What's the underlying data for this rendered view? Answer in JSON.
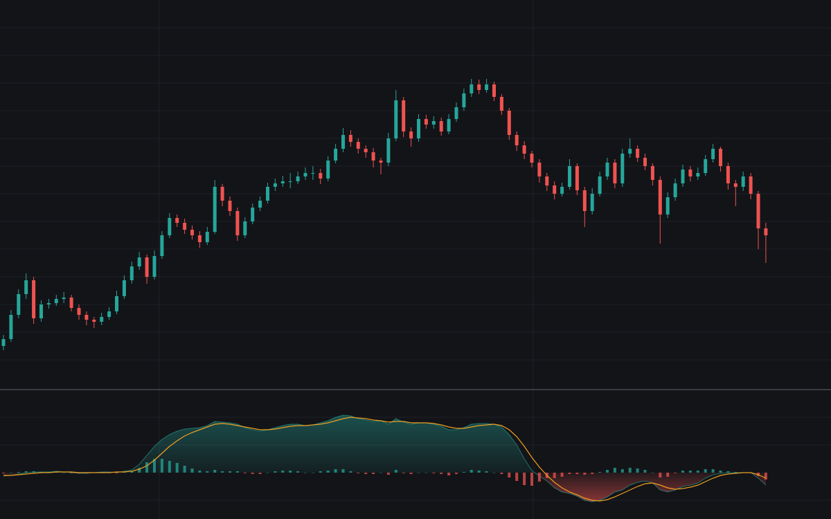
{
  "chart_data": [
    {
      "type": "candlestick",
      "up_color": "#26a69a",
      "down_color": "#ef5350",
      "ylim": [
        0,
        560
      ],
      "candles": [
        [
          60,
          76,
          54,
          70
        ],
        [
          70,
          112,
          66,
          105
        ],
        [
          105,
          142,
          100,
          135
        ],
        [
          135,
          165,
          128,
          155
        ],
        [
          155,
          160,
          92,
          100
        ],
        [
          100,
          126,
          95,
          120
        ],
        [
          120,
          128,
          114,
          122
        ],
        [
          122,
          134,
          118,
          128
        ],
        [
          128,
          138,
          122,
          130
        ],
        [
          130,
          134,
          110,
          115
        ],
        [
          115,
          120,
          98,
          105
        ],
        [
          105,
          110,
          90,
          98
        ],
        [
          98,
          102,
          86,
          95
        ],
        [
          95,
          108,
          90,
          102
        ],
        [
          102,
          116,
          98,
          110
        ],
        [
          110,
          140,
          106,
          132
        ],
        [
          132,
          162,
          128,
          155
        ],
        [
          155,
          182,
          150,
          175
        ],
        [
          175,
          196,
          170,
          188
        ],
        [
          188,
          192,
          150,
          160
        ],
        [
          160,
          198,
          156,
          190
        ],
        [
          190,
          226,
          186,
          220
        ],
        [
          220,
          252,
          216,
          245
        ],
        [
          245,
          250,
          232,
          238
        ],
        [
          238,
          244,
          222,
          228
        ],
        [
          228,
          234,
          214,
          220
        ],
        [
          220,
          226,
          202,
          210
        ],
        [
          210,
          232,
          206,
          225
        ],
        [
          225,
          300,
          222,
          290
        ],
        [
          290,
          294,
          262,
          270
        ],
        [
          270,
          276,
          248,
          255
        ],
        [
          255,
          260,
          212,
          220
        ],
        [
          220,
          246,
          216,
          240
        ],
        [
          240,
          266,
          236,
          260
        ],
        [
          260,
          276,
          255,
          270
        ],
        [
          270,
          296,
          266,
          290
        ],
        [
          290,
          302,
          284,
          295
        ],
        [
          295,
          306,
          290,
          298
        ],
        [
          298,
          310,
          288,
          298
        ],
        [
          298,
          312,
          294,
          305
        ],
        [
          305,
          318,
          300,
          310
        ],
        [
          310,
          320,
          300,
          310
        ],
        [
          310,
          316,
          294,
          302
        ],
        [
          302,
          334,
          298,
          328
        ],
        [
          328,
          352,
          324,
          345
        ],
        [
          345,
          375,
          340,
          365
        ],
        [
          365,
          372,
          348,
          355
        ],
        [
          355,
          360,
          338,
          345
        ],
        [
          345,
          350,
          332,
          340
        ],
        [
          340,
          346,
          318,
          328
        ],
        [
          328,
          332,
          308,
          325
        ],
        [
          325,
          368,
          320,
          360
        ],
        [
          360,
          430,
          356,
          415
        ],
        [
          415,
          420,
          362,
          370
        ],
        [
          370,
          376,
          348,
          360
        ],
        [
          360,
          395,
          355,
          388
        ],
        [
          388,
          394,
          374,
          380
        ],
        [
          380,
          392,
          374,
          385
        ],
        [
          385,
          390,
          364,
          370
        ],
        [
          370,
          395,
          366,
          388
        ],
        [
          388,
          412,
          384,
          405
        ],
        [
          405,
          432,
          400,
          425
        ],
        [
          425,
          446,
          420,
          438
        ],
        [
          438,
          445,
          424,
          430
        ],
        [
          430,
          446,
          426,
          438
        ],
        [
          438,
          442,
          414,
          420
        ],
        [
          420,
          424,
          394,
          400
        ],
        [
          400,
          404,
          358,
          365
        ],
        [
          365,
          370,
          342,
          350
        ],
        [
          350,
          356,
          330,
          338
        ],
        [
          338,
          342,
          318,
          325
        ],
        [
          325,
          330,
          296,
          305
        ],
        [
          305,
          310,
          284,
          292
        ],
        [
          292,
          298,
          272,
          280
        ],
        [
          280,
          296,
          276,
          290
        ],
        [
          290,
          330,
          286,
          320
        ],
        [
          320,
          324,
          278,
          285
        ],
        [
          285,
          290,
          232,
          255
        ],
        [
          255,
          288,
          250,
          280
        ],
        [
          280,
          312,
          276,
          305
        ],
        [
          305,
          332,
          300,
          325
        ],
        [
          325,
          330,
          288,
          295
        ],
        [
          295,
          345,
          290,
          338
        ],
        [
          338,
          360,
          332,
          345
        ],
        [
          345,
          350,
          326,
          332
        ],
        [
          332,
          338,
          314,
          320
        ],
        [
          320,
          324,
          292,
          300
        ],
        [
          300,
          305,
          208,
          250
        ],
        [
          250,
          282,
          245,
          275
        ],
        [
          275,
          302,
          270,
          295
        ],
        [
          295,
          322,
          290,
          315
        ],
        [
          315,
          320,
          298,
          305
        ],
        [
          305,
          318,
          300,
          310
        ],
        [
          310,
          336,
          306,
          330
        ],
        [
          330,
          352,
          325,
          345
        ],
        [
          345,
          348,
          312,
          320
        ],
        [
          320,
          325,
          286,
          295
        ],
        [
          295,
          300,
          262,
          290
        ],
        [
          290,
          312,
          284,
          305
        ],
        [
          305,
          310,
          272,
          280
        ],
        [
          280,
          284,
          200,
          230
        ],
        [
          230,
          238,
          180,
          220
        ]
      ]
    },
    {
      "type": "macd",
      "area_up_color": "#26a69a",
      "area_down_color": "#ef5350",
      "signal_color": "#f0a020",
      "ylim": [
        -67,
        118
      ],
      "macd": [
        -5,
        -4,
        -2,
        0,
        1,
        1,
        1,
        2,
        1,
        0,
        -1,
        -1,
        0,
        1,
        1,
        0,
        2,
        4,
        12,
        25,
        38,
        48,
        55,
        60,
        63,
        64,
        65,
        68,
        74,
        73,
        72,
        70,
        65,
        62,
        60,
        62,
        65,
        68,
        70,
        70,
        68,
        69,
        72,
        75,
        80,
        83,
        82,
        78,
        76,
        74,
        75,
        70,
        78,
        73,
        70,
        72,
        72,
        70,
        67,
        62,
        62,
        65,
        70,
        71,
        71,
        70,
        66,
        55,
        40,
        20,
        3,
        -5,
        -12,
        -22,
        -28,
        -30,
        -34,
        -40,
        -42,
        -40,
        -35,
        -28,
        -25,
        -18,
        -14,
        -12,
        -15,
        -25,
        -28,
        -25,
        -20,
        -18,
        -15,
        -8,
        -3,
        -1,
        0,
        0,
        0,
        0,
        -8,
        -18
      ],
      "signal": [
        -4,
        -4,
        -3,
        -2,
        -1,
        0,
        0,
        1,
        1,
        1,
        0,
        0,
        0,
        0,
        0,
        1,
        1,
        2,
        5,
        10,
        18,
        28,
        38,
        46,
        53,
        58,
        62,
        66,
        70,
        71,
        70,
        68,
        66,
        64,
        62,
        62,
        63,
        65,
        67,
        68,
        68,
        69,
        70,
        72,
        75,
        78,
        80,
        79,
        78,
        76,
        75,
        73,
        74,
        74,
        72,
        72,
        72,
        71,
        69,
        66,
        64,
        64,
        66,
        68,
        69,
        70,
        68,
        62,
        52,
        38,
        22,
        8,
        -4,
        -14,
        -22,
        -28,
        -32,
        -37,
        -40,
        -41,
        -39,
        -35,
        -30,
        -25,
        -20,
        -16,
        -15,
        -18,
        -22,
        -24,
        -23,
        -21,
        -18,
        -13,
        -8,
        -4,
        -2,
        -1,
        0,
        0,
        -3,
        -8
      ],
      "histogram": [
        -1,
        0,
        1,
        2,
        2,
        1,
        1,
        1,
        0,
        -1,
        -1,
        -1,
        0,
        1,
        1,
        -1,
        1,
        2,
        7,
        15,
        20,
        20,
        17,
        14,
        10,
        6,
        3,
        2,
        4,
        2,
        2,
        2,
        -1,
        -2,
        -2,
        0,
        2,
        3,
        3,
        2,
        0,
        0,
        2,
        3,
        5,
        5,
        2,
        -1,
        -2,
        -2,
        0,
        -3,
        4,
        -1,
        -2,
        0,
        0,
        -1,
        -2,
        -4,
        -2,
        1,
        4,
        3,
        2,
        0,
        -2,
        -7,
        -12,
        -18,
        -19,
        -13,
        -8,
        -8,
        -6,
        -2,
        -2,
        -3,
        -2,
        1,
        4,
        7,
        5,
        7,
        6,
        4,
        0,
        -7,
        -6,
        -1,
        3,
        3,
        3,
        5,
        5,
        3,
        2,
        1,
        0,
        0,
        -5,
        -10
      ]
    }
  ]
}
